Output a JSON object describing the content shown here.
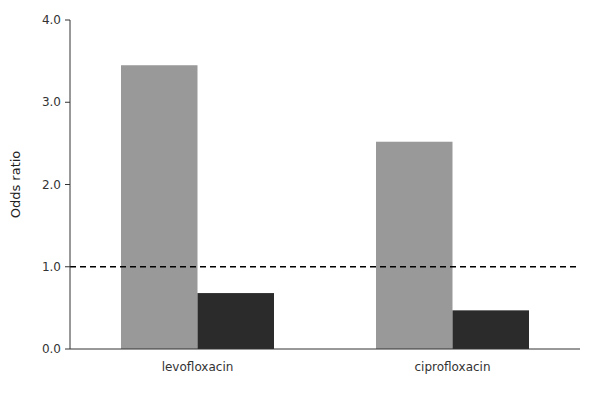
{
  "chart_data": {
    "type": "bar",
    "categories": [
      "levofloxacin",
      "ciprofloxacin"
    ],
    "series": [
      {
        "color": "#999999",
        "values": [
          3.45,
          2.52
        ]
      },
      {
        "color": "#2b2b2b",
        "values": [
          0.68,
          0.47
        ]
      }
    ],
    "y_label": "Odds ratio",
    "ylim": [
      0.0,
      4.0
    ],
    "yticks": [
      {
        "value": 0,
        "label": "0.0"
      },
      {
        "value": 1,
        "label": "1.0"
      },
      {
        "value": 2,
        "label": "2.0"
      },
      {
        "value": 3,
        "label": "3.0"
      },
      {
        "value": 4,
        "label": "4.0"
      }
    ],
    "reference_line": 1.0,
    "grid": false
  }
}
